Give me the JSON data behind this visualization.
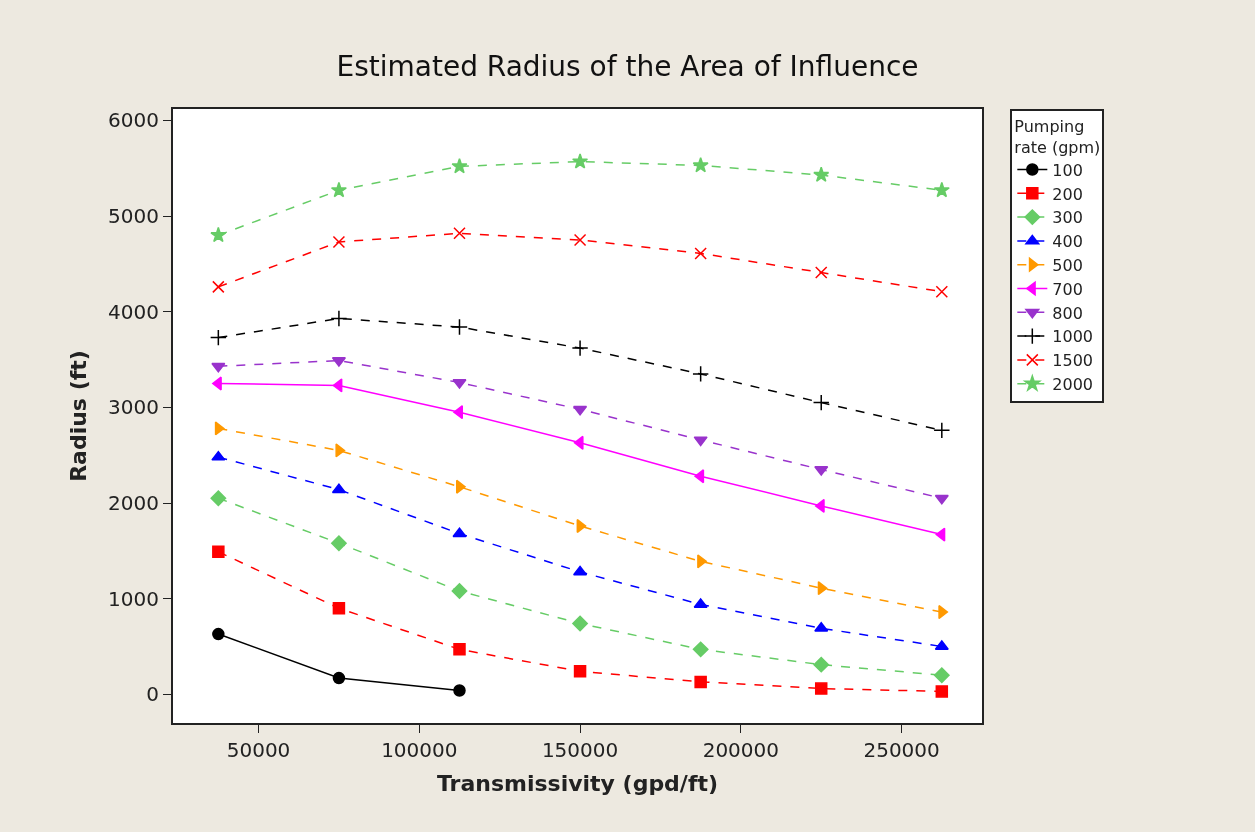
{
  "chart_data": {
    "type": "line",
    "title": "Estimated Radius of the Area of Influence",
    "xlabel": "Transmissivity (gpd/ft)",
    "ylabel": "Radius (ft)",
    "legend_title": "Pumping rate (gpm)",
    "legend": "top right",
    "x": [
      37500,
      75000,
      112500,
      150000,
      187500,
      225000,
      262500
    ],
    "xlim": [
      23400,
      275000
    ],
    "xticks": [
      50000,
      100000,
      150000,
      200000,
      250000
    ],
    "ylim": [
      -300,
      6120
    ],
    "yticks": [
      0,
      1000,
      2000,
      3000,
      4000,
      5000,
      6000
    ],
    "series": [
      {
        "name": "100",
        "color": "#000000",
        "marker": "circle",
        "line_style": "solid",
        "values": [
          630,
          170,
          40,
          null,
          null,
          null,
          null
        ]
      },
      {
        "name": "200",
        "color": "#ff0000",
        "marker": "square",
        "line_style": "dashed",
        "values": [
          1490,
          900,
          470,
          240,
          130,
          60,
          30
        ]
      },
      {
        "name": "300",
        "color": "#66cc66",
        "marker": "diamond",
        "line_style": "dashed",
        "values": [
          2050,
          1580,
          1080,
          740,
          470,
          310,
          200
        ]
      },
      {
        "name": "400",
        "color": "#0000ff",
        "marker": "triangle",
        "line_style": "dashed",
        "values": [
          2480,
          2140,
          1680,
          1280,
          940,
          690,
          500
        ]
      },
      {
        "name": "500",
        "color": "#ff9900",
        "marker": "triangle-right",
        "line_style": "dashed",
        "values": [
          2780,
          2550,
          2170,
          1760,
          1390,
          1110,
          860
        ]
      },
      {
        "name": "700",
        "color": "#ff00ff",
        "marker": "triangle-left",
        "line_style": "solid",
        "values": [
          3250,
          3230,
          2950,
          2630,
          2280,
          1970,
          1670
        ]
      },
      {
        "name": "800",
        "color": "#9933cc",
        "marker": "triangle-down",
        "line_style": "dashed",
        "values": [
          3430,
          3490,
          3260,
          2980,
          2660,
          2350,
          2050
        ]
      },
      {
        "name": "1000",
        "color": "#000000",
        "marker": "cross",
        "line_style": "dashed",
        "values": [
          3730,
          3930,
          3840,
          3620,
          3350,
          3050,
          2760
        ]
      },
      {
        "name": "1500",
        "color": "#ff0000",
        "marker": "x",
        "line_style": "dashed",
        "values": [
          4260,
          4730,
          4820,
          4750,
          4610,
          4410,
          4210
        ]
      },
      {
        "name": "2000",
        "color": "#66cc66",
        "marker": "star",
        "line_style": "dashed",
        "values": [
          4800,
          5270,
          5520,
          5570,
          5530,
          5430,
          5270
        ]
      }
    ]
  }
}
